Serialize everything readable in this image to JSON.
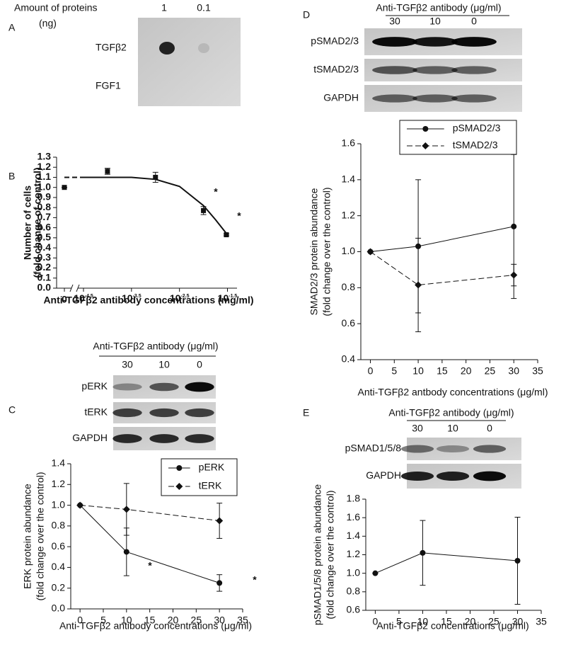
{
  "panel_labels": [
    "A",
    "B",
    "C",
    "D",
    "E"
  ],
  "dot_blot": {
    "header": "Amount of proteins",
    "unit": "(ng)",
    "lanes": [
      "1",
      "0.1"
    ],
    "rows": [
      "TGFβ2",
      "FGF1"
    ]
  },
  "western_blots": [
    {
      "header": "Anti-TGFβ2 antibody (μg/ml)",
      "lanes": [
        "30",
        "10",
        "0"
      ],
      "rows": [
        "pERK",
        "tERK",
        "GAPDH"
      ]
    },
    {
      "header": "Anti-TGFβ2 antibody (μg/ml)",
      "lanes": [
        "30",
        "10",
        "0"
      ],
      "rows": [
        "pSMAD2/3",
        "tSMAD2/3",
        "GAPDH"
      ]
    },
    {
      "header": "Anti-TGFβ2 antibody (μg/ml)",
      "lanes": [
        "30",
        "10",
        "0"
      ],
      "rows": [
        "pSMAD1/5/8",
        "GAPDH"
      ]
    }
  ],
  "chart_data": [
    {
      "type": "scatter",
      "xscale": "log",
      "xbreak": true,
      "xlabel": "Anti-TGFβ2 antibody concentrations (mg/ml)",
      "ylabel": [
        "Number of cells",
        "(fold change of control)"
      ],
      "xlim": [
        3.16228e-05,
        0.05
      ],
      "xticks": [
        0,
        {
          "value": 3.16228e-05,
          "label": "10",
          "exponent": "-4.5"
        },
        {
          "value": 0.000316228,
          "label": "10",
          "exponent": "-3.5"
        },
        {
          "value": 0.00316228,
          "label": "10",
          "exponent": "-2.5"
        },
        {
          "value": 0.0316228,
          "label": "10",
          "exponent": "-1.5"
        }
      ],
      "ylim": [
        0,
        1.3
      ],
      "yticks": [
        {
          "value": 0,
          "label": "0.0"
        },
        0.1,
        0.2,
        0.3,
        0.4,
        0.5,
        0.6,
        0.7,
        0.8,
        0.9,
        {
          "value": 1,
          "label": "1.0"
        },
        1.1,
        1.2,
        1.3
      ],
      "series": [
        {
          "marker": "square",
          "color": "#111111",
          "x": [
            0,
            0.0001,
            0.001,
            0.01,
            0.03
          ],
          "values": [
            1.0,
            1.16,
            1.1,
            0.77,
            0.53
          ],
          "errors": [
            0,
            0.03,
            0.05,
            0.04,
            0.01
          ]
        },
        {
          "style": "fit",
          "color": "#111111",
          "x": [
            0,
            3.16228e-05,
            0.000316228,
            0.001,
            0.00316228,
            0.01,
            0.0178,
            0.0316228
          ],
          "values": [
            1.1,
            1.1,
            1.1,
            1.08,
            1.01,
            0.82,
            0.68,
            0.53
          ]
        }
      ],
      "annotations": [
        "*",
        "*"
      ]
    },
    {
      "type": "line",
      "xlabel": "Anti-TGFβ2 antibody concentrations (μg/ml)",
      "ylabel": [
        "ERK protein abundance",
        "(fold change over the control)"
      ],
      "xlim": [
        -2,
        35
      ],
      "xticks": [
        0,
        5,
        10,
        15,
        20,
        25,
        30,
        35
      ],
      "ylim": [
        0,
        1.4
      ],
      "yticks": [
        {
          "value": 0,
          "label": "0.0"
        },
        0.2,
        0.4,
        0.6,
        0.8,
        {
          "value": 1,
          "label": "1.0"
        },
        1.2,
        1.4
      ],
      "series": [
        {
          "name": "pERK",
          "marker": "circle",
          "dash": false,
          "color": "#111111",
          "x": [
            0,
            10,
            30
          ],
          "values": [
            1.0,
            0.55,
            0.25
          ],
          "errors": [
            0,
            0.23,
            0.08
          ]
        },
        {
          "name": "tERK",
          "marker": "diamond",
          "dash": true,
          "color": "#111111",
          "x": [
            0,
            10,
            30
          ],
          "values": [
            1.0,
            0.96,
            0.85
          ],
          "errors": [
            0,
            0.25,
            0.17
          ]
        }
      ],
      "annotations": [
        "*",
        "*"
      ]
    },
    {
      "type": "line",
      "xlabel": "Anti-TGFβ2 antbody concentrations (μg/ml)",
      "ylabel": [
        "SMAD2/3 protein abundance",
        "(fold change over the control)"
      ],
      "xlim": [
        -2,
        35
      ],
      "xticks": [
        0,
        5,
        10,
        15,
        20,
        25,
        30,
        35
      ],
      "ylim": [
        0.4,
        1.6
      ],
      "yticks": [
        0.4,
        0.6,
        0.8,
        {
          "value": 1,
          "label": "1.0"
        },
        1.2,
        1.4,
        1.6
      ],
      "series": [
        {
          "name": "pSMAD2/3",
          "marker": "circle",
          "dash": false,
          "color": "#111111",
          "x": [
            0,
            10,
            30
          ],
          "values": [
            1.0,
            1.03,
            1.14
          ],
          "errors": [
            0,
            0.37,
            0.4
          ]
        },
        {
          "name": "tSMAD2/3",
          "marker": "diamond",
          "dash": true,
          "color": "#111111",
          "x": [
            0,
            10,
            30
          ],
          "values": [
            1.0,
            0.815,
            0.87
          ],
          "errors": [
            0,
            0.26,
            0.06
          ]
        }
      ]
    },
    {
      "type": "line",
      "xlabel": "Anti-TGFβ2 concentrations (μg/ml)",
      "ylabel": [
        "pSMAD1/5/8 protein abundance",
        "(fold change over the control)"
      ],
      "xlim": [
        -2,
        35
      ],
      "xticks": [
        0,
        5,
        10,
        15,
        20,
        25,
        30,
        35
      ],
      "ylim": [
        0.6,
        1.8
      ],
      "yticks": [
        0.6,
        0.8,
        {
          "value": 1,
          "label": "1.0"
        },
        1.2,
        1.4,
        1.6,
        1.8
      ],
      "series": [
        {
          "marker": "circle",
          "dash": false,
          "color": "#111111",
          "x": [
            0,
            10,
            30
          ],
          "values": [
            1.0,
            1.22,
            1.135
          ],
          "errors": [
            0,
            0.35,
            0.47
          ]
        }
      ]
    }
  ]
}
